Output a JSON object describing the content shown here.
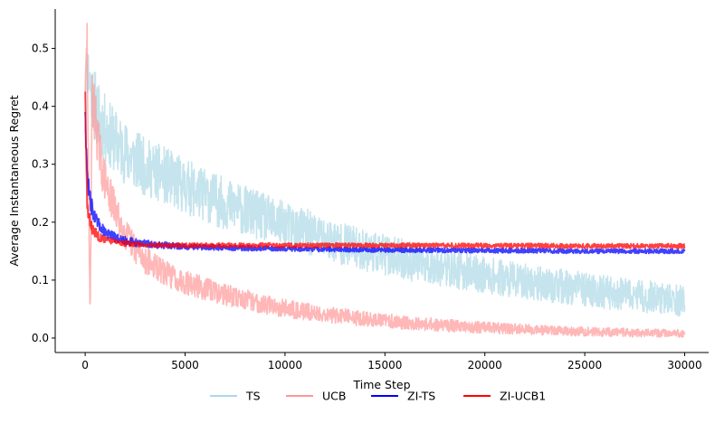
{
  "chart_data": {
    "type": "line",
    "title": "",
    "xlabel": "Time Step",
    "ylabel": "Average Instantaneous Regret",
    "xlim": [
      -1500,
      31200
    ],
    "ylim": [
      -0.025,
      0.568
    ],
    "xticks": [
      0,
      5000,
      10000,
      15000,
      20000,
      25000,
      30000
    ],
    "xtick_labels": [
      "0",
      "5000",
      "10000",
      "15000",
      "20000",
      "25000",
      "30000"
    ],
    "yticks": [
      0.0,
      0.1,
      0.2,
      0.3,
      0.4,
      0.5
    ],
    "ytick_labels": [
      "0.0",
      "0.1",
      "0.2",
      "0.3",
      "0.4",
      "0.5"
    ],
    "grid": false,
    "legend_position": "bottom-center",
    "series": [
      {
        "name": "TS",
        "color": "#add8e6",
        "opacity": 0.7,
        "x": [
          0,
          100,
          300,
          600,
          1000,
          1500,
          2000,
          3000,
          4000,
          5000,
          6000,
          7000,
          8000,
          9000,
          10000,
          11000,
          12000,
          13000,
          14000,
          15000,
          16000,
          17000,
          18000,
          19000,
          20000,
          21000,
          22000,
          23000,
          24000,
          25000,
          26000,
          27000,
          28000,
          29000,
          30000
        ],
        "y": [
          0.36,
          0.47,
          0.43,
          0.39,
          0.36,
          0.34,
          0.32,
          0.295,
          0.28,
          0.262,
          0.247,
          0.232,
          0.22,
          0.207,
          0.195,
          0.184,
          0.172,
          0.162,
          0.152,
          0.143,
          0.135,
          0.128,
          0.121,
          0.115,
          0.109,
          0.103,
          0.098,
          0.093,
          0.088,
          0.084,
          0.079,
          0.075,
          0.072,
          0.068,
          0.063
        ],
        "spread": [
          0.01,
          0.05,
          0.06,
          0.06,
          0.06,
          0.055,
          0.055,
          0.05,
          0.05,
          0.048,
          0.046,
          0.045,
          0.043,
          0.042,
          0.04,
          0.04,
          0.038,
          0.037,
          0.036,
          0.035,
          0.035,
          0.034,
          0.033,
          0.032,
          0.032,
          0.031,
          0.03,
          0.03,
          0.03,
          0.029,
          0.029,
          0.028,
          0.028,
          0.027,
          0.027
        ]
      },
      {
        "name": "UCB",
        "color": "#ff9999",
        "opacity": 0.7,
        "x": [
          0,
          100,
          200,
          250,
          350,
          500,
          800,
          1000,
          1500,
          2000,
          2500,
          3000,
          4000,
          5000,
          6000,
          7000,
          8000,
          9000,
          10000,
          11000,
          12000,
          14000,
          16000,
          18000,
          20000,
          22000,
          24000,
          26000,
          28000,
          30000
        ],
        "y": [
          0.43,
          0.52,
          0.15,
          0.05,
          0.42,
          0.38,
          0.3,
          0.27,
          0.22,
          0.18,
          0.155,
          0.135,
          0.112,
          0.097,
          0.085,
          0.075,
          0.066,
          0.058,
          0.052,
          0.046,
          0.041,
          0.033,
          0.027,
          0.022,
          0.018,
          0.015,
          0.012,
          0.01,
          0.009,
          0.008
        ],
        "spread": [
          0.01,
          0.04,
          0.02,
          0.01,
          0.05,
          0.05,
          0.04,
          0.035,
          0.032,
          0.028,
          0.026,
          0.024,
          0.022,
          0.021,
          0.02,
          0.019,
          0.018,
          0.017,
          0.016,
          0.015,
          0.014,
          0.013,
          0.012,
          0.011,
          0.01,
          0.009,
          0.008,
          0.008,
          0.007,
          0.007
        ]
      },
      {
        "name": "ZI-TS",
        "color": "#0000ff",
        "opacity": 0.75,
        "x": [
          0,
          50,
          100,
          200,
          300,
          500,
          800,
          1200,
          1800,
          2500,
          3500,
          5000,
          7000,
          10000,
          15000,
          20000,
          25000,
          30000
        ],
        "y": [
          0.4,
          0.33,
          0.28,
          0.25,
          0.23,
          0.205,
          0.19,
          0.178,
          0.17,
          0.165,
          0.161,
          0.158,
          0.156,
          0.154,
          0.152,
          0.151,
          0.15,
          0.15
        ],
        "spread": [
          0.02,
          0.03,
          0.02,
          0.02,
          0.015,
          0.012,
          0.01,
          0.009,
          0.008,
          0.007,
          0.006,
          0.005,
          0.005,
          0.004,
          0.004,
          0.004,
          0.004,
          0.004
        ]
      },
      {
        "name": "ZI-UCB1",
        "color": "#ff0000",
        "opacity": 0.75,
        "x": [
          0,
          50,
          100,
          150,
          250,
          400,
          700,
          1000,
          1500,
          2000,
          3000,
          5000,
          7000,
          10000,
          15000,
          20000,
          25000,
          30000
        ],
        "y": [
          0.43,
          0.3,
          0.23,
          0.21,
          0.2,
          0.185,
          0.175,
          0.17,
          0.166,
          0.163,
          0.161,
          0.16,
          0.16,
          0.16,
          0.16,
          0.16,
          0.159,
          0.159
        ],
        "spread": [
          0.01,
          0.02,
          0.015,
          0.015,
          0.012,
          0.01,
          0.008,
          0.006,
          0.005,
          0.005,
          0.004,
          0.004,
          0.004,
          0.004,
          0.004,
          0.004,
          0.004,
          0.004
        ]
      }
    ]
  }
}
